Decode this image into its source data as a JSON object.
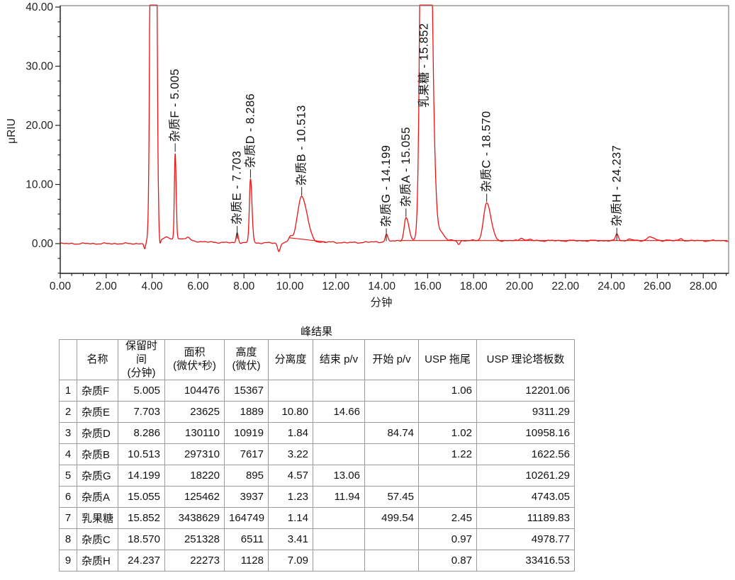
{
  "chart": {
    "ylabel": "μRIU",
    "xlabel": "分钟",
    "y_tick_labels": [
      "0.00",
      "10.00",
      "20.00",
      "30.00",
      "40.00"
    ],
    "x_tick_labels": [
      "0.00",
      "2.00",
      "4.00",
      "6.00",
      "8.00",
      "10.00",
      "12.00",
      "14.00",
      "16.00",
      "18.00",
      "20.00",
      "22.00",
      "24.00",
      "26.00",
      "28.00"
    ],
    "trace_color": "#ee1212",
    "axis_color": "#222222",
    "box_color": "#7d7d7d",
    "label_color": "#111111"
  },
  "chart_data": {
    "type": "line",
    "title": "",
    "xlabel": "分钟",
    "ylabel": "μRIU",
    "xlim": [
      0,
      29.1
    ],
    "ylim": [
      -5,
      40.2
    ],
    "x_major_tick": 2.0,
    "x_minor_tick": 0.5,
    "y_major_tick": 10.0,
    "y_minor_tick": 2.5,
    "grid": false,
    "peaks": [
      {
        "name": "杂质F",
        "label": "杂质F - 5.005",
        "rt": 5.005,
        "apex_uRIU": 15.4,
        "sigma_l": 0.05,
        "sigma_r": 0.06,
        "offscale": false
      },
      {
        "name": "杂质E",
        "label": "杂质E - 7.703",
        "rt": 7.703,
        "apex_uRIU": 1.9,
        "sigma_l": 0.06,
        "sigma_r": 0.07,
        "offscale": false
      },
      {
        "name": "杂质D",
        "label": "杂质D - 8.286",
        "rt": 8.286,
        "apex_uRIU": 11.0,
        "sigma_l": 0.07,
        "sigma_r": 0.09,
        "offscale": false
      },
      {
        "name": "杂质B",
        "label": "杂质B - 10.513",
        "rt": 10.513,
        "apex_uRIU": 8.0,
        "sigma_l": 0.26,
        "sigma_r": 0.33,
        "offscale": false
      },
      {
        "name": "杂质G",
        "label": "杂质G - 14.199",
        "rt": 14.199,
        "apex_uRIU": 1.5,
        "sigma_l": 0.07,
        "sigma_r": 0.09,
        "offscale": false
      },
      {
        "name": "杂质A",
        "label": "杂质A - 15.055",
        "rt": 15.055,
        "apex_uRIU": 4.4,
        "sigma_l": 0.11,
        "sigma_r": 0.17,
        "offscale": false
      },
      {
        "name": "乳果糖",
        "label": "乳果糖 - 15.852",
        "rt": 15.852,
        "apex_uRIU": 164.7,
        "sigma_l": 0.17,
        "sigma_r": 0.3,
        "offscale": true
      },
      {
        "name": "杂质C",
        "label": "杂质C - 18.570",
        "rt": 18.57,
        "apex_uRIU": 6.9,
        "sigma_l": 0.19,
        "sigma_r": 0.26,
        "offscale": false
      },
      {
        "name": "杂质H",
        "label": "杂质H - 24.237",
        "rt": 24.237,
        "apex_uRIU": 1.6,
        "sigma_l": 0.08,
        "sigma_r": 0.1,
        "offscale": false
      }
    ],
    "unlabeled_features": [
      {
        "type": "dip",
        "x": 3.68,
        "h": -1.0,
        "sl": 0.05,
        "sr": 0.05
      },
      {
        "type": "solvent_peak",
        "x": 4.05,
        "h": 300.0,
        "sl": 0.11,
        "sr": 0.12
      },
      {
        "type": "dip",
        "x": 4.33,
        "h": -1.3,
        "sl": 0.045,
        "sr": 0.05
      },
      {
        "type": "bump",
        "x": 4.6,
        "h": 0.35,
        "sl": 0.1,
        "sr": 0.1
      },
      {
        "type": "bump",
        "x": 5.55,
        "h": 0.4,
        "sl": 0.09,
        "sr": 0.09
      },
      {
        "type": "dip",
        "x": 9.52,
        "h": -1.45,
        "sl": 0.08,
        "sr": 0.09
      },
      {
        "type": "bump",
        "x": 10.02,
        "h": 0.75,
        "sl": 0.1,
        "sr": 0.12
      },
      {
        "type": "bump",
        "x": 16.62,
        "h": 1.2,
        "sl": 0.18,
        "sr": 0.18
      },
      {
        "type": "dip",
        "x": 17.35,
        "h": -0.55,
        "sl": 0.08,
        "sr": 0.08
      },
      {
        "type": "bump",
        "x": 20.1,
        "h": 0.5,
        "sl": 0.12,
        "sr": 0.12
      },
      {
        "type": "bump",
        "x": 20.45,
        "h": 0.2,
        "sl": 0.1,
        "sr": 0.1
      },
      {
        "type": "bump",
        "x": 24.8,
        "h": 0.35,
        "sl": 0.1,
        "sr": 0.1
      },
      {
        "type": "bump",
        "x": 25.7,
        "h": 0.65,
        "sl": 0.2,
        "sr": 0.2
      },
      {
        "type": "bump",
        "x": 26.4,
        "h": 0.15,
        "sl": 0.12,
        "sr": 0.12
      },
      {
        "type": "bump",
        "x": 27.05,
        "h": 0.3,
        "sl": 0.12,
        "sr": 0.12
      }
    ],
    "baseline_nodes": [
      [
        0,
        0
      ],
      [
        3.55,
        0
      ],
      [
        4.45,
        0.75
      ],
      [
        5.35,
        0.8
      ],
      [
        6.1,
        0.3
      ],
      [
        7.4,
        0.15
      ],
      [
        9.35,
        0.1
      ],
      [
        10.0,
        0.25
      ],
      [
        11.6,
        0.25
      ],
      [
        12.5,
        0.15
      ],
      [
        14.0,
        0.3
      ],
      [
        14.7,
        0.5
      ],
      [
        29.1,
        0.5
      ]
    ],
    "integration_baselines": [
      [
        9.95,
        1.0,
        11.55,
        0.3
      ],
      [
        14.8,
        0.52,
        29.05,
        0.52
      ]
    ]
  },
  "table": {
    "title": "峰结果",
    "columns": [
      "",
      "名称",
      "保留时间\n(分钟)",
      "面积\n(微伏*秒)",
      "高度\n(微伏)",
      "分离度",
      "结束 p/v",
      "开始 p/v",
      "USP 拖尾",
      "USP 理论塔板数"
    ],
    "rows": [
      [
        "1",
        "杂质F",
        "5.005",
        "104476",
        "15367",
        "",
        "",
        "",
        "1.06",
        "12201.06"
      ],
      [
        "2",
        "杂质E",
        "7.703",
        "23625",
        "1889",
        "10.80",
        "14.66",
        "",
        "",
        "9311.29"
      ],
      [
        "3",
        "杂质D",
        "8.286",
        "130110",
        "10919",
        "1.84",
        "",
        "84.74",
        "1.02",
        "10958.16"
      ],
      [
        "4",
        "杂质B",
        "10.513",
        "297310",
        "7617",
        "3.22",
        "",
        "",
        "1.22",
        "1622.56"
      ],
      [
        "5",
        "杂质G",
        "14.199",
        "18220",
        "895",
        "4.57",
        "13.06",
        "",
        "",
        "10261.29"
      ],
      [
        "6",
        "杂质A",
        "15.055",
        "125462",
        "3937",
        "1.23",
        "11.94",
        "57.45",
        "",
        "4743.05"
      ],
      [
        "7",
        "乳果糖",
        "15.852",
        "3438629",
        "164749",
        "1.14",
        "",
        "499.54",
        "2.45",
        "11189.83"
      ],
      [
        "8",
        "杂质C",
        "18.570",
        "251328",
        "6511",
        "3.41",
        "",
        "",
        "0.97",
        "4978.77"
      ],
      [
        "9",
        "杂质H",
        "24.237",
        "22273",
        "1128",
        "7.09",
        "",
        "",
        "0.87",
        "33416.53"
      ]
    ]
  }
}
